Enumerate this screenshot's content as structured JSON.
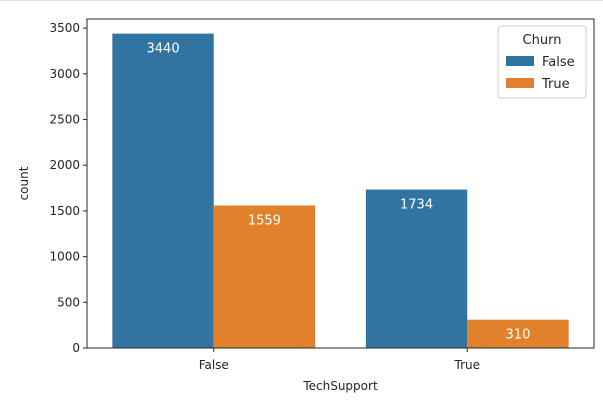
{
  "chart_data": {
    "type": "bar",
    "categories": [
      "False",
      "True"
    ],
    "series": [
      {
        "name": "False",
        "values": [
          3440,
          1734
        ],
        "color": "#3274a1"
      },
      {
        "name": "True",
        "values": [
          1559,
          310
        ],
        "color": "#e1812c"
      }
    ],
    "xlabel": "TechSupport",
    "ylabel": "count",
    "ylim": [
      0,
      3600
    ],
    "yticks": [
      0,
      500,
      1000,
      1500,
      2000,
      2500,
      3000,
      3500
    ],
    "legend": {
      "title": "Churn",
      "position": "top-right"
    },
    "grid": false
  }
}
